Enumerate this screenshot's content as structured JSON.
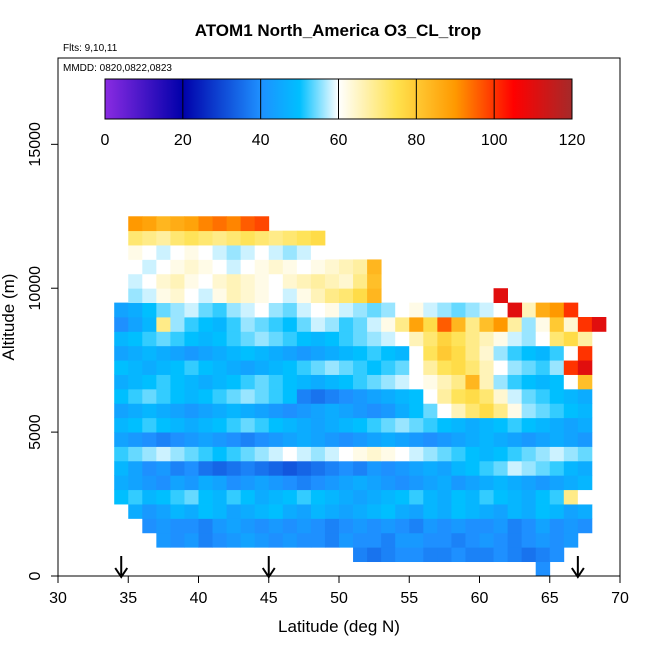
{
  "chart_data": {
    "type": "heatmap",
    "title": "ATOM1 North_America O3_CL_trop",
    "flights_label": "Flts: 9,10,11",
    "dates_label": "MMDD: 0820,0822,0823",
    "xlabel": "Latitude (deg N)",
    "ylabel": "Altitude (m)",
    "xlim": [
      30,
      70
    ],
    "ylim": [
      0,
      18000
    ],
    "xticks": [
      30,
      35,
      40,
      45,
      50,
      55,
      60,
      65,
      70
    ],
    "yticks": [
      0,
      5000,
      10000,
      15000
    ],
    "colorbar": {
      "min": 0,
      "max": 120,
      "ticks": [
        0,
        20,
        40,
        60,
        80,
        100,
        120
      ],
      "colors": [
        "#8a2be2",
        "#0000aa",
        "#1e90ff",
        "#00bfff",
        "#ffffff",
        "#ffe14d",
        "#ff9900",
        "#ff0000",
        "#a52a2a"
      ],
      "color_positions": [
        0,
        20,
        40,
        50,
        60,
        75,
        90,
        105,
        120
      ]
    },
    "bins": {
      "lat_start": 34,
      "lat_step": 1,
      "alt_start": 500,
      "alt_step": 500,
      "fill_value": 45,
      "rows": [
        {
          "alt": 500,
          "lat_range": [
            64,
            65
          ],
          "values": [
            40
          ]
        },
        {
          "alt": 1000,
          "lat_range": [
            51,
            66
          ],
          "values": [
            38,
            36,
            38,
            40,
            40,
            38,
            38,
            40,
            38,
            38,
            40,
            38,
            36,
            38,
            40
          ]
        },
        {
          "alt": 1500,
          "lat_range": [
            37,
            67
          ],
          "values": [
            42,
            40,
            42,
            38,
            40,
            42,
            44,
            42,
            40,
            42,
            40,
            40,
            38,
            42,
            40,
            40,
            38,
            42,
            42,
            40,
            40,
            38,
            40,
            42,
            40,
            38,
            40,
            42,
            40,
            42
          ]
        },
        {
          "alt": 2000,
          "lat_range": [
            36,
            68
          ],
          "values": [
            40,
            42,
            40,
            40,
            38,
            42,
            44,
            42,
            40,
            42,
            40,
            42,
            40,
            38,
            40,
            42,
            40,
            42,
            40,
            38,
            42,
            40,
            42,
            40,
            40,
            42,
            38,
            40,
            44,
            40,
            42,
            40
          ]
        },
        {
          "alt": 2500,
          "lat_range": [
            35,
            68
          ],
          "values": [
            46,
            42,
            44,
            48,
            46,
            50,
            48,
            44,
            46,
            48,
            50,
            46,
            44,
            48,
            46,
            44,
            46,
            48,
            50,
            46,
            44,
            48,
            46,
            50,
            48,
            46,
            44,
            48,
            46,
            50,
            48,
            44,
            46
          ]
        },
        {
          "alt": 3000,
          "lat_range": [
            34,
            68
          ],
          "values": [
            50,
            52,
            48,
            50,
            52,
            54,
            50,
            48,
            52,
            50,
            46,
            48,
            50,
            52,
            50,
            48,
            46,
            44,
            46,
            48,
            50,
            52,
            48,
            46,
            50,
            48,
            52,
            50,
            48,
            46,
            50,
            52,
            70,
            60
          ]
        },
        {
          "alt": 3500,
          "lat_range": [
            34,
            68
          ],
          "values": [
            46,
            44,
            42,
            40,
            44,
            42,
            46,
            44,
            40,
            42,
            44,
            42,
            40,
            38,
            40,
            42,
            44,
            46,
            44,
            42,
            40,
            42,
            44,
            46,
            42,
            44,
            46,
            48,
            46,
            44,
            42,
            44,
            46,
            48
          ]
        },
        {
          "alt": 4000,
          "lat_range": [
            34,
            68
          ],
          "values": [
            48,
            44,
            40,
            42,
            38,
            40,
            36,
            34,
            36,
            38,
            36,
            34,
            32,
            34,
            36,
            38,
            40,
            38,
            42,
            40,
            42,
            44,
            46,
            44,
            48,
            50,
            52,
            54,
            58,
            56,
            54,
            52,
            48,
            46
          ]
        },
        {
          "alt": 4500,
          "lat_range": [
            34,
            68
          ],
          "values": [
            52,
            54,
            56,
            58,
            56,
            54,
            52,
            50,
            52,
            54,
            56,
            58,
            60,
            58,
            56,
            58,
            60,
            62,
            64,
            62,
            60,
            58,
            56,
            54,
            52,
            50,
            48,
            50,
            52,
            54,
            56,
            58,
            56,
            54
          ]
        },
        {
          "alt": 5000,
          "lat_range": [
            34,
            68
          ],
          "values": [
            44,
            42,
            40,
            38,
            40,
            42,
            44,
            42,
            40,
            38,
            40,
            42,
            44,
            46,
            44,
            42,
            40,
            42,
            44,
            46,
            44,
            42,
            40,
            42,
            44,
            46,
            48,
            46,
            44,
            42,
            44,
            46,
            44,
            42
          ]
        },
        {
          "alt": 5500,
          "lat_range": [
            34,
            68
          ],
          "values": [
            48,
            50,
            52,
            50,
            48,
            46,
            48,
            50,
            52,
            54,
            52,
            50,
            48,
            46,
            44,
            46,
            48,
            50,
            52,
            54,
            56,
            54,
            52,
            50,
            48,
            46,
            48,
            50,
            52,
            50,
            48,
            46,
            44,
            46
          ]
        },
        {
          "alt": 6000,
          "lat_range": [
            34,
            68
          ],
          "values": [
            44,
            46,
            48,
            46,
            44,
            42,
            44,
            46,
            48,
            46,
            44,
            42,
            40,
            42,
            44,
            46,
            44,
            42,
            40,
            42,
            46,
            50,
            54,
            60,
            66,
            72,
            76,
            70,
            62,
            56,
            54,
            52,
            50,
            48
          ]
        },
        {
          "alt": 6500,
          "lat_range": [
            34,
            68
          ],
          "values": [
            50,
            52,
            54,
            52,
            50,
            48,
            50,
            52,
            54,
            56,
            54,
            52,
            50,
            38,
            36,
            38,
            40,
            42,
            44,
            46,
            48,
            50,
            60,
            68,
            74,
            76,
            72,
            64,
            58,
            54,
            52,
            50,
            48,
            46
          ]
        },
        {
          "alt": 7000,
          "lat_range": [
            34,
            68
          ],
          "values": [
            46,
            48,
            50,
            52,
            50,
            48,
            46,
            48,
            50,
            52,
            54,
            52,
            50,
            48,
            46,
            48,
            50,
            52,
            54,
            56,
            58,
            60,
            62,
            66,
            70,
            84,
            66,
            56,
            52,
            50,
            48,
            50,
            60,
            82
          ]
        },
        {
          "alt": 7500,
          "lat_range": [
            34,
            68
          ],
          "values": [
            50,
            48,
            46,
            48,
            50,
            52,
            50,
            48,
            46,
            44,
            46,
            48,
            50,
            52,
            54,
            56,
            54,
            52,
            50,
            52,
            54,
            60,
            68,
            74,
            76,
            72,
            66,
            60,
            56,
            54,
            52,
            56,
            100,
            110
          ]
        },
        {
          "alt": 8000,
          "lat_range": [
            34,
            68
          ],
          "values": [
            44,
            46,
            48,
            46,
            44,
            42,
            44,
            46,
            48,
            50,
            48,
            46,
            44,
            42,
            44,
            46,
            48,
            50,
            52,
            50,
            48,
            60,
            74,
            80,
            76,
            70,
            64,
            56,
            52,
            50,
            48,
            52,
            60,
            100
          ]
        },
        {
          "alt": 8500,
          "lat_range": [
            34,
            68
          ],
          "values": [
            48,
            50,
            52,
            54,
            52,
            50,
            48,
            50,
            52,
            54,
            56,
            54,
            52,
            50,
            48,
            50,
            52,
            54,
            56,
            58,
            60,
            66,
            72,
            78,
            74,
            70,
            66,
            62,
            58,
            56,
            60,
            72,
            76,
            68
          ]
        },
        {
          "alt": 9000,
          "lat_range": [
            34,
            69
          ],
          "values": [
            40,
            44,
            48,
            70,
            56,
            52,
            50,
            48,
            52,
            56,
            54,
            52,
            50,
            54,
            58,
            56,
            52,
            54,
            58,
            62,
            70,
            88,
            76,
            96,
            84,
            70,
            82,
            90,
            68,
            56,
            62,
            80,
            64,
            100,
            110,
            115
          ]
        },
        {
          "alt": 9500,
          "lat_range": [
            34,
            67
          ],
          "values": [
            44,
            46,
            50,
            54,
            56,
            58,
            54,
            52,
            56,
            58,
            60,
            56,
            54,
            58,
            60,
            62,
            58,
            56,
            54,
            56,
            60,
            62,
            58,
            56,
            54,
            56,
            58,
            60,
            62,
            66,
            86,
            90,
            100
          ]
        },
        {
          "alt": 10000,
          "lat_range": [
            35,
            53
          ],
          "values": [
            56,
            58,
            62,
            64,
            60,
            58,
            62,
            66,
            64,
            62,
            60,
            58,
            62,
            66,
            70,
            72,
            76,
            84,
            100
          ]
        },
        {
          "alt": 10500,
          "lat_range": [
            35,
            53
          ],
          "values": [
            58,
            60,
            64,
            66,
            62,
            60,
            64,
            66,
            64,
            62,
            60,
            64,
            66,
            68,
            66,
            64,
            70,
            82,
            60
          ]
        },
        {
          "alt": 11000,
          "lat_range": [
            35,
            53
          ],
          "values": [
            60,
            58,
            60,
            62,
            64,
            62,
            60,
            58,
            60,
            62,
            64,
            62,
            60,
            62,
            64,
            66,
            68,
            84,
            104
          ]
        },
        {
          "alt": 11500,
          "lat_range": [
            35,
            49
          ],
          "values": [
            62,
            60,
            58,
            60,
            62,
            60,
            58,
            56,
            58,
            60,
            58,
            56,
            58,
            60
          ]
        },
        {
          "alt": 12000,
          "lat_range": [
            35,
            49
          ],
          "values": [
            72,
            70,
            68,
            72,
            74,
            72,
            70,
            72,
            74,
            72,
            70,
            72,
            74,
            76
          ]
        },
        {
          "alt": 12500,
          "lat_range": [
            35,
            45
          ],
          "values": [
            90,
            88,
            84,
            86,
            88,
            92,
            94,
            92,
            96,
            98
          ]
        }
      ],
      "isolated_cells": [
        {
          "lat": 61,
          "alt": 10000,
          "value": 110
        },
        {
          "lat": 62,
          "alt": 9500,
          "value": 110
        }
      ]
    },
    "arrows": [
      34.5,
      45,
      67
    ]
  }
}
